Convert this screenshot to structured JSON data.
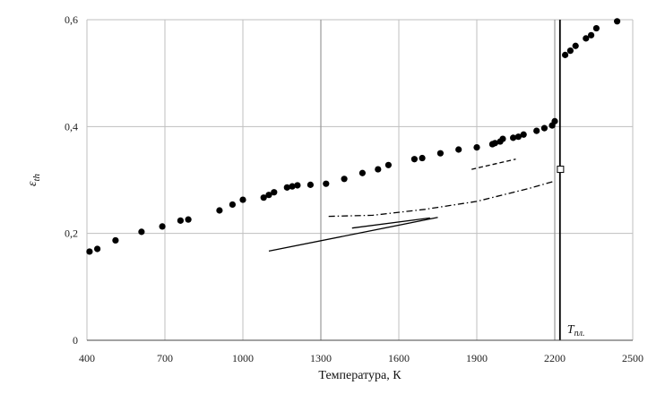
{
  "chart_data": {
    "type": "scatter",
    "title": "",
    "xlabel": "Температура, К",
    "ylabel": "ε_th",
    "xlim": [
      400,
      2500
    ],
    "ylim": [
      0,
      0.6
    ],
    "xticks": [
      "400",
      "700",
      "1000",
      "1300",
      "1600",
      "1900",
      "2200",
      "2500"
    ],
    "yticks": [
      "0",
      "0,2",
      "0,4",
      "0,6"
    ],
    "grid": "vertical",
    "markers": [
      {
        "name": "",
        "x": [
          410,
          440,
          510,
          610,
          690,
          760,
          790,
          910,
          960,
          1000,
          1080,
          1100,
          1120,
          1170,
          1190,
          1210,
          1260,
          1320,
          1390,
          1460,
          1520,
          1560,
          1660,
          1690,
          1760,
          1830,
          1900,
          1960,
          1970,
          1990,
          2000,
          2040,
          2060,
          2080,
          2130,
          2160,
          2190,
          2200
        ],
        "y": [
          0.166,
          0.171,
          0.187,
          0.203,
          0.213,
          0.224,
          0.226,
          0.243,
          0.254,
          0.263,
          0.267,
          0.272,
          0.277,
          0.286,
          0.288,
          0.29,
          0.291,
          0.293,
          0.302,
          0.313,
          0.32,
          0.328,
          0.339,
          0.341,
          0.35,
          0.357,
          0.361,
          0.367,
          0.369,
          0.372,
          0.377,
          0.379,
          0.381,
          0.385,
          0.392,
          0.397,
          0.402,
          0.41
        ]
      },
      {
        "name": "",
        "x": [
          2240,
          2260,
          2280,
          2320,
          2340,
          2360,
          2440
        ],
        "y": [
          0.534,
          0.542,
          0.551,
          0.565,
          0.571,
          0.584,
          0.597
        ]
      }
    ],
    "lines": [
      {
        "name": "",
        "style": "solid",
        "x": [
          1100,
          1750
        ],
        "y": [
          0.167,
          0.23
        ]
      },
      {
        "name": "",
        "style": "solid",
        "x": [
          1420,
          1720
        ],
        "y": [
          0.21,
          0.229
        ]
      },
      {
        "name": "",
        "style": "dashed",
        "x": [
          1880,
          2050
        ],
        "y": [
          0.32,
          0.339
        ]
      },
      {
        "name": "",
        "style": "dashdot",
        "x": [
          1330,
          1500,
          1700,
          1900,
          2100,
          2200
        ],
        "y": [
          0.232,
          0.234,
          0.245,
          0.26,
          0.284,
          0.298
        ]
      }
    ],
    "open_marker": {
      "x": 2222,
      "y": 0.32
    },
    "reference_lines": [
      {
        "axis": "x",
        "value": 1300,
        "color": "#999999"
      },
      {
        "axis": "x",
        "value": 2200,
        "color": "#999999"
      },
      {
        "axis": "x",
        "value": 2220,
        "color": "#000000",
        "label": "T_пл."
      }
    ],
    "colors": {
      "markers": "#000000",
      "grid": "#bfbfbf"
    }
  }
}
